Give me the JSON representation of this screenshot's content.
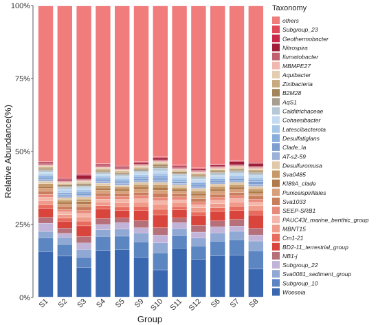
{
  "chart_data": {
    "type": "bar",
    "stacked": true,
    "xlabel": "Group",
    "ylabel": "Relative Abundance(%)",
    "ylim": [
      0,
      100
    ],
    "yticks": [
      "0%",
      "25%",
      "50%",
      "75%",
      "100%"
    ],
    "legend_title": "Taxonomy",
    "legend_position": "right",
    "categories": [
      "S1",
      "S2",
      "S3",
      "S4",
      "S5",
      "S9",
      "S10",
      "S11",
      "S12",
      "S6",
      "S7",
      "S8"
    ],
    "series": [
      {
        "name": "Woeseia",
        "color": "#3a68b0",
        "values": [
          15.6,
          14.2,
          10.2,
          16.0,
          16.4,
          13.6,
          9.0,
          16.8,
          12.6,
          14.0,
          14.2,
          9.4
        ]
      },
      {
        "name": "Subgroup_10",
        "color": "#5b86c2",
        "values": [
          4.6,
          4.0,
          3.4,
          4.8,
          4.6,
          5.2,
          5.6,
          4.2,
          4.4,
          5.0,
          5.2,
          6.0
        ]
      },
      {
        "name": "Sva0081_sediment_group",
        "color": "#8fa8d4",
        "values": [
          2.2,
          2.4,
          2.6,
          2.2,
          2.4,
          3.0,
          3.2,
          2.4,
          2.6,
          2.8,
          2.8,
          3.2
        ]
      },
      {
        "name": "Subgroup_22",
        "color": "#c2b4d8",
        "values": [
          2.8,
          1.4,
          2.2,
          1.8,
          2.2,
          1.8,
          2.6,
          2.0,
          2.0,
          2.0,
          1.8,
          2.0
        ]
      },
      {
        "name": "NB1-j",
        "color": "#b5707a",
        "values": [
          2.0,
          1.8,
          2.2,
          2.0,
          1.6,
          2.4,
          2.4,
          1.6,
          2.2,
          2.0,
          2.2,
          2.2
        ]
      },
      {
        "name": "BD2-11_terrestrial_group",
        "color": "#d9443c",
        "values": [
          3.0,
          2.4,
          3.6,
          3.2,
          2.6,
          3.4,
          4.2,
          2.8,
          3.2,
          3.2,
          3.0,
          4.4
        ]
      },
      {
        "name": "Cm1-21",
        "color": "#e86c5e",
        "values": [
          1.2,
          1.0,
          1.6,
          1.2,
          1.2,
          1.4,
          1.8,
          1.0,
          1.2,
          1.2,
          1.4,
          1.6
        ]
      },
      {
        "name": "MBNT15",
        "color": "#f09a8a",
        "values": [
          1.4,
          1.2,
          1.4,
          1.2,
          1.4,
          1.4,
          1.6,
          1.4,
          1.4,
          1.4,
          1.4,
          1.4
        ]
      },
      {
        "name": "PAUC43f_marine_benthic_group",
        "color": "#f4b6a8",
        "values": [
          1.2,
          1.0,
          1.2,
          1.0,
          1.2,
          1.2,
          1.2,
          1.0,
          1.0,
          1.2,
          1.2,
          1.2
        ]
      },
      {
        "name": "SEEP-SRB1",
        "color": "#e8897a",
        "values": [
          1.0,
          0.8,
          1.0,
          1.0,
          1.0,
          1.2,
          1.2,
          1.0,
          1.0,
          1.0,
          1.0,
          1.0
        ]
      },
      {
        "name": "Sva1033",
        "color": "#c97d5a",
        "values": [
          1.0,
          1.0,
          1.2,
          1.0,
          1.0,
          1.0,
          1.2,
          1.0,
          1.0,
          1.0,
          1.0,
          1.0
        ]
      },
      {
        "name": "Puniceispirillales",
        "color": "#d8a07a",
        "values": [
          1.0,
          0.8,
          1.0,
          1.0,
          0.8,
          1.0,
          1.0,
          0.8,
          1.0,
          1.0,
          1.0,
          0.8
        ]
      },
      {
        "name": "KI89A_clade",
        "color": "#b07a4a",
        "values": [
          0.8,
          0.8,
          0.8,
          0.8,
          0.8,
          0.8,
          1.0,
          0.8,
          0.8,
          0.8,
          0.8,
          0.8
        ]
      },
      {
        "name": "Sva0485",
        "color": "#c59a68",
        "values": [
          0.8,
          0.6,
          0.8,
          0.8,
          0.6,
          0.8,
          0.8,
          0.6,
          0.8,
          0.8,
          0.8,
          0.8
        ]
      },
      {
        "name": "Desulfuromusa",
        "color": "#e0c8a8",
        "values": [
          0.8,
          0.8,
          0.8,
          0.8,
          0.6,
          0.8,
          0.8,
          0.8,
          0.8,
          0.8,
          0.8,
          0.8
        ]
      },
      {
        "name": "AT-s2-59",
        "color": "#9db2d8",
        "values": [
          0.6,
          0.6,
          0.6,
          0.6,
          0.6,
          0.6,
          0.8,
          0.6,
          0.6,
          0.6,
          0.6,
          0.8
        ]
      },
      {
        "name": "Clade_Ia",
        "color": "#7f9ed0",
        "values": [
          0.6,
          0.6,
          0.6,
          0.6,
          0.6,
          0.6,
          0.6,
          0.6,
          0.6,
          0.6,
          0.6,
          0.8
        ]
      },
      {
        "name": "Desulfatiglans",
        "color": "#8aaedc",
        "values": [
          0.6,
          0.6,
          0.6,
          0.6,
          0.6,
          0.8,
          0.8,
          0.6,
          0.6,
          0.6,
          0.6,
          0.8
        ]
      },
      {
        "name": "Latescibacterota",
        "color": "#a8c6e8",
        "values": [
          0.6,
          0.6,
          0.6,
          0.6,
          0.6,
          0.6,
          0.8,
          0.6,
          0.6,
          0.6,
          0.6,
          0.6
        ]
      },
      {
        "name": "Cohaesibacter",
        "color": "#c4daf0",
        "values": [
          0.6,
          0.6,
          0.6,
          0.6,
          0.6,
          0.6,
          0.8,
          0.6,
          0.6,
          0.6,
          0.6,
          0.6
        ]
      },
      {
        "name": "Calditrichaceae",
        "color": "#b4c8d8",
        "values": [
          0.6,
          0.6,
          0.6,
          0.6,
          0.6,
          0.6,
          0.8,
          0.6,
          0.6,
          0.6,
          0.6,
          0.6
        ]
      },
      {
        "name": "AqS1",
        "color": "#a89e90",
        "values": [
          0.4,
          0.4,
          0.4,
          0.4,
          0.4,
          0.4,
          0.6,
          0.4,
          0.4,
          0.4,
          0.4,
          0.4
        ]
      },
      {
        "name": "B2M28",
        "color": "#a4845a",
        "values": [
          0.4,
          0.4,
          0.4,
          0.4,
          0.4,
          0.4,
          0.6,
          0.4,
          0.4,
          0.4,
          0.4,
          0.4
        ]
      },
      {
        "name": "Zixibacteria",
        "color": "#c8aa80",
        "values": [
          0.4,
          0.4,
          0.4,
          0.4,
          0.4,
          0.4,
          0.4,
          0.4,
          0.4,
          0.4,
          0.4,
          0.4
        ]
      },
      {
        "name": "Aquibacter",
        "color": "#e4cdb0",
        "values": [
          0.4,
          0.4,
          0.4,
          0.4,
          0.4,
          0.4,
          0.4,
          0.4,
          0.4,
          0.4,
          0.4,
          0.4
        ]
      },
      {
        "name": "MBMPE27",
        "color": "#f0b8b0",
        "values": [
          0.4,
          0.4,
          0.4,
          0.4,
          0.4,
          0.4,
          0.4,
          0.4,
          0.4,
          0.4,
          0.4,
          0.4
        ]
      },
      {
        "name": "Ilumatobacter",
        "color": "#c06070",
        "values": [
          0.4,
          0.4,
          0.4,
          0.4,
          0.4,
          0.4,
          0.4,
          0.4,
          0.4,
          0.4,
          0.4,
          0.4
        ]
      },
      {
        "name": "Nitrospira",
        "color": "#a01e38",
        "values": [
          0.4,
          0.4,
          1.2,
          0.4,
          0.4,
          0.4,
          0.6,
          0.4,
          0.4,
          0.4,
          1.0,
          1.0
        ]
      },
      {
        "name": "Geothermobacter",
        "color": "#c8284a",
        "values": [
          0.2,
          0.2,
          0.4,
          0.2,
          0.2,
          0.2,
          0.2,
          0.2,
          0.2,
          0.2,
          0.2,
          0.2
        ]
      },
      {
        "name": "Subgroup_23",
        "color": "#e04858",
        "values": [
          0.2,
          0.2,
          0.2,
          0.2,
          0.2,
          0.2,
          0.2,
          0.2,
          0.2,
          0.2,
          0.2,
          0.2
        ]
      },
      {
        "name": "others",
        "color": "#f07c7c",
        "values": [
          52.8,
          59.2,
          56.8,
          53.6,
          54.8,
          52.8,
          49.4,
          54.2,
          53.6,
          53.4,
          52.0,
          51.6
        ]
      }
    ]
  }
}
